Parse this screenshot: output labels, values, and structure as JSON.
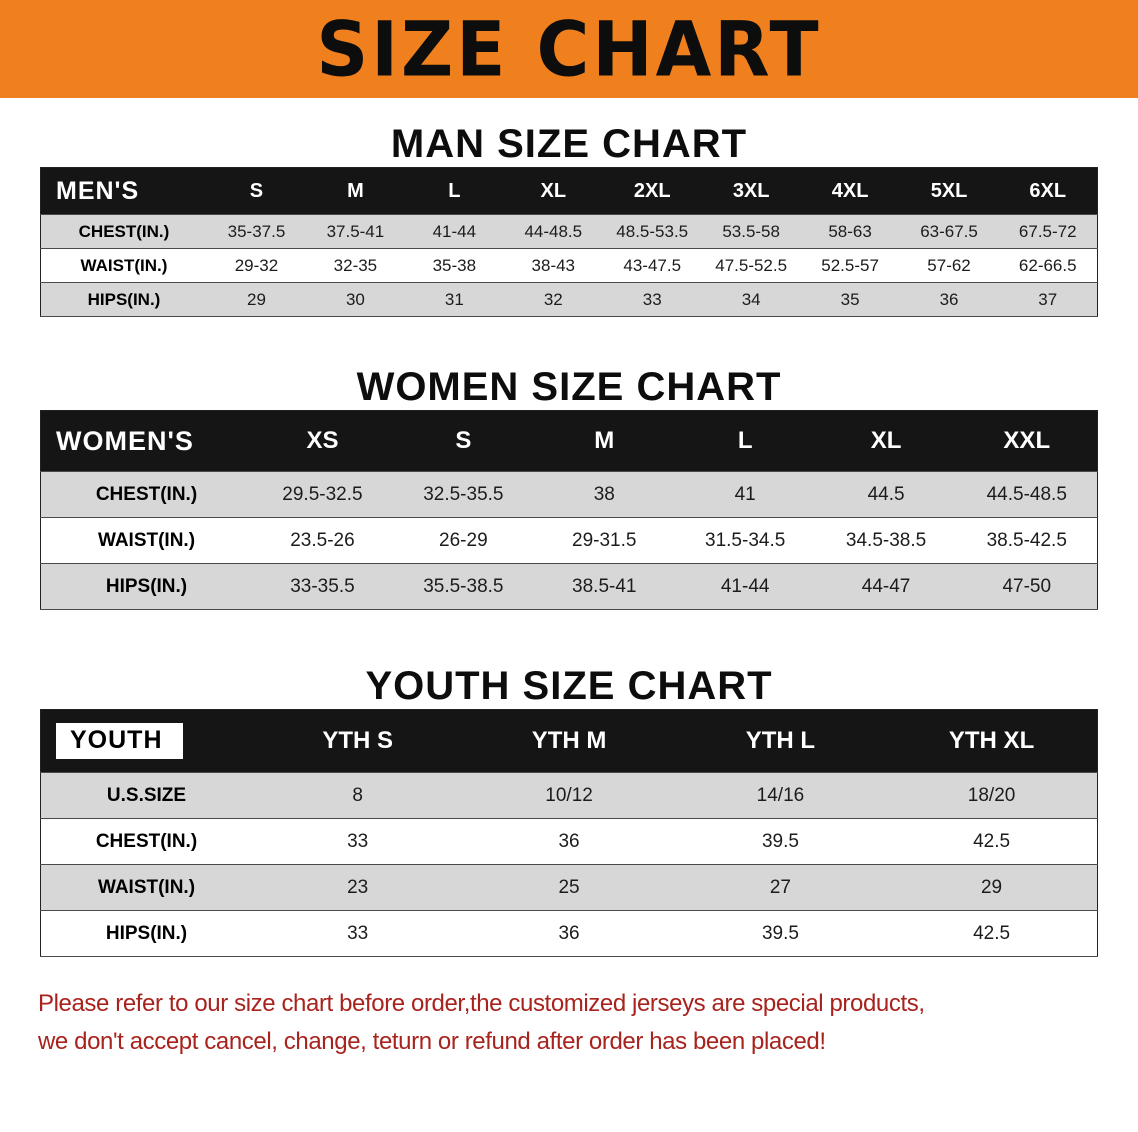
{
  "banner": {
    "title": "SIZE CHART"
  },
  "men": {
    "heading": "MAN SIZE CHART",
    "table": {
      "header": [
        "MEN'S",
        "S",
        "M",
        "L",
        "XL",
        "2XL",
        "3XL",
        "4XL",
        "5XL",
        "6XL"
      ],
      "rows": [
        [
          "CHEST(IN.)",
          "35-37.5",
          "37.5-41",
          "41-44",
          "44-48.5",
          "48.5-53.5",
          "53.5-58",
          "58-63",
          "63-67.5",
          "67.5-72"
        ],
        [
          "WAIST(IN.)",
          "29-32",
          "32-35",
          "35-38",
          "38-43",
          "43-47.5",
          "47.5-52.5",
          "52.5-57",
          "57-62",
          "62-66.5"
        ],
        [
          "HIPS(IN.)",
          "29",
          "30",
          "31",
          "32",
          "33",
          "34",
          "35",
          "36",
          "37"
        ]
      ]
    }
  },
  "women": {
    "heading": "WOMEN SIZE CHART",
    "table": {
      "header": [
        "WOMEN'S",
        "XS",
        "S",
        "M",
        "L",
        "XL",
        "XXL"
      ],
      "rows": [
        [
          "CHEST(IN.)",
          "29.5-32.5",
          "32.5-35.5",
          "38",
          "41",
          "44.5",
          "44.5-48.5"
        ],
        [
          "WAIST(IN.)",
          "23.5-26",
          "26-29",
          "29-31.5",
          "31.5-34.5",
          "34.5-38.5",
          "38.5-42.5"
        ],
        [
          "HIPS(IN.)",
          "33-35.5",
          "35.5-38.5",
          "38.5-41",
          "41-44",
          "44-47",
          "47-50"
        ]
      ]
    }
  },
  "youth": {
    "heading": "YOUTH SIZE CHART",
    "table": {
      "header": [
        "YOUTH",
        "YTH S",
        "YTH M",
        "YTH L",
        "YTH XL"
      ],
      "rows": [
        [
          "U.S.SIZE",
          "8",
          "10/12",
          "14/16",
          "18/20"
        ],
        [
          "CHEST(IN.)",
          "33",
          "36",
          "39.5",
          "42.5"
        ],
        [
          "WAIST(IN.)",
          "23",
          "25",
          "27",
          "29"
        ],
        [
          "HIPS(IN.)",
          "33",
          "36",
          "39.5",
          "42.5"
        ]
      ]
    }
  },
  "footer": {
    "line1": "Please refer to our size chart before order,the customized jerseys are special products,",
    "line2": "we don't accept cancel, change, teturn or refund after order has been placed!"
  },
  "colors": {
    "banner_bg": "#f0801d",
    "table_header_bg": "#151515",
    "row_stripe": "#d7d7d7",
    "footer_text": "#a8231d"
  }
}
